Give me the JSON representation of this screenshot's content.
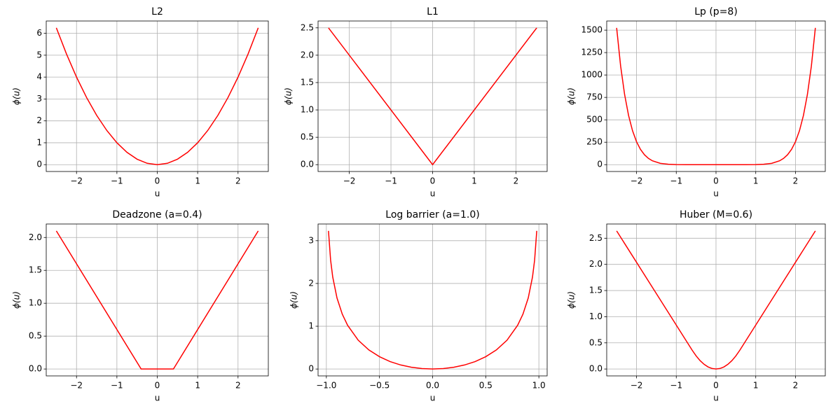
{
  "chart_data": [
    {
      "type": "line",
      "title": "L2",
      "xlabel": "u",
      "ylabel": "ϕ(u)",
      "color": "#ff0000",
      "grid": true,
      "x": [
        -2.5,
        -2.25,
        -2,
        -1.75,
        -1.5,
        -1.25,
        -1,
        -0.75,
        -0.5,
        -0.25,
        0,
        0.25,
        0.5,
        0.75,
        1,
        1.25,
        1.5,
        1.75,
        2,
        2.25,
        2.5
      ],
      "values": [
        6.25,
        5.0625,
        4,
        3.0625,
        2.25,
        1.5625,
        1,
        0.5625,
        0.25,
        0.0625,
        0,
        0.0625,
        0.25,
        0.5625,
        1,
        1.5625,
        2.25,
        3.0625,
        4,
        5.0625,
        6.25
      ],
      "xlim": [
        -2.75,
        2.75
      ],
      "ylim": [
        -0.3125,
        6.5625
      ],
      "xticks": [
        {
          "value": -2,
          "label": "−2"
        },
        {
          "value": -1,
          "label": "−1"
        },
        0,
        1,
        2
      ],
      "yticks": [
        0,
        1,
        2,
        3,
        4,
        5,
        6
      ]
    },
    {
      "type": "line",
      "title": "L1",
      "xlabel": "u",
      "ylabel": "ϕ(u)",
      "color": "#ff0000",
      "grid": true,
      "x": [
        -2.5,
        0,
        2.5
      ],
      "values": [
        2.5,
        0,
        2.5
      ],
      "xlim": [
        -2.75,
        2.75
      ],
      "ylim": [
        -0.125,
        2.625
      ],
      "xticks": [
        {
          "value": -2,
          "label": "−2"
        },
        {
          "value": -1,
          "label": "−1"
        },
        0,
        1,
        2
      ],
      "yticks": [
        {
          "value": 0,
          "label": "0.0"
        },
        0.5,
        {
          "value": 1,
          "label": "1.0"
        },
        1.5,
        {
          "value": 2,
          "label": "2.0"
        },
        2.5
      ]
    },
    {
      "type": "line",
      "title": "Lp (p=8)",
      "xlabel": "u",
      "ylabel": "ϕ(u)",
      "color": "#ff0000",
      "grid": true,
      "x": [
        -2.5,
        -2.4,
        -2.3,
        -2.2,
        -2.1,
        -2,
        -1.9,
        -1.8,
        -1.7,
        -1.6,
        -1.4,
        -1.2,
        -1,
        -0.75,
        -0.5,
        0,
        0.5,
        0.75,
        1,
        1.2,
        1.4,
        1.6,
        1.7,
        1.8,
        1.9,
        2,
        2.1,
        2.2,
        2.3,
        2.4,
        2.5
      ],
      "values": [
        1525.88,
        1100.75,
        783.1,
        548.76,
        378.2,
        256,
        169.8,
        110.2,
        69.76,
        42.95,
        14.76,
        4.3,
        1,
        0.1,
        0.004,
        0,
        0.004,
        0.1,
        1,
        4.3,
        14.76,
        42.95,
        69.76,
        110.2,
        169.8,
        256,
        378.2,
        548.76,
        783.1,
        1100.75,
        1525.88
      ],
      "xlim": [
        -2.75,
        2.75
      ],
      "ylim": [
        -76.3,
        1602.2
      ],
      "xticks": [
        {
          "value": -2,
          "label": "−2"
        },
        {
          "value": -1,
          "label": "−1"
        },
        0,
        1,
        2
      ],
      "yticks": [
        0,
        250,
        500,
        750,
        1000,
        1250,
        1500
      ]
    },
    {
      "type": "line",
      "title": "Deadzone (a=0.4)",
      "xlabel": "u",
      "ylabel": "ϕ(u)",
      "color": "#ff0000",
      "grid": true,
      "x": [
        -2.5,
        -0.4,
        0,
        0.4,
        2.5
      ],
      "values": [
        2.1,
        0,
        0,
        0,
        2.1
      ],
      "xlim": [
        -2.75,
        2.75
      ],
      "ylim": [
        -0.105,
        2.205
      ],
      "xticks": [
        {
          "value": -2,
          "label": "−2"
        },
        {
          "value": -1,
          "label": "−1"
        },
        0,
        1,
        2
      ],
      "yticks": [
        {
          "value": 0,
          "label": "0.0"
        },
        0.5,
        {
          "value": 1,
          "label": "1.0"
        },
        1.5,
        {
          "value": 2,
          "label": "2.0"
        }
      ]
    },
    {
      "type": "line",
      "title": "Log barrier (a=1.0)",
      "xlabel": "u",
      "ylabel": "ϕ(u)",
      "color": "#ff0000",
      "grid": true,
      "x": [
        -0.98,
        -0.96,
        -0.94,
        -0.9,
        -0.85,
        -0.8,
        -0.7,
        -0.6,
        -0.5,
        -0.4,
        -0.3,
        -0.2,
        -0.1,
        0,
        0.1,
        0.2,
        0.3,
        0.4,
        0.5,
        0.6,
        0.7,
        0.8,
        0.85,
        0.9,
        0.94,
        0.96,
        0.98
      ],
      "values": [
        3.229,
        2.546,
        2.151,
        1.661,
        1.282,
        1.022,
        0.673,
        0.446,
        0.288,
        0.174,
        0.094,
        0.041,
        0.01,
        0,
        0.01,
        0.041,
        0.094,
        0.174,
        0.288,
        0.446,
        0.673,
        1.022,
        1.282,
        1.661,
        2.151,
        2.546,
        3.229
      ],
      "xlim": [
        -1.078,
        1.078
      ],
      "ylim": [
        -0.161,
        3.39
      ],
      "xticks": [
        {
          "value": -1,
          "label": "−1.0"
        },
        {
          "value": -0.5,
          "label": "−0.5"
        },
        {
          "value": 0,
          "label": "0.0"
        },
        0.5,
        {
          "value": 1,
          "label": "1.0"
        }
      ],
      "yticks": [
        0,
        1,
        2,
        3
      ]
    },
    {
      "type": "line",
      "title": "Huber (M=0.6)",
      "xlabel": "u",
      "ylabel": "ϕ(u)",
      "color": "#ff0000",
      "grid": true,
      "x": [
        -2.5,
        -2,
        -1.5,
        -1,
        -0.6,
        -0.5,
        -0.4,
        -0.3,
        -0.2,
        -0.1,
        0,
        0.1,
        0.2,
        0.3,
        0.4,
        0.5,
        0.6,
        1,
        1.5,
        2,
        2.5
      ],
      "values": [
        2.64,
        2.04,
        1.44,
        0.84,
        0.36,
        0.25,
        0.16,
        0.09,
        0.04,
        0.01,
        0,
        0.01,
        0.04,
        0.09,
        0.16,
        0.25,
        0.36,
        0.84,
        1.44,
        2.04,
        2.64
      ],
      "xlim": [
        -2.75,
        2.75
      ],
      "ylim": [
        -0.132,
        2.772
      ],
      "xticks": [
        {
          "value": -2,
          "label": "−2"
        },
        {
          "value": -1,
          "label": "−1"
        },
        0,
        1,
        2
      ],
      "yticks": [
        {
          "value": 0,
          "label": "0.0"
        },
        0.5,
        {
          "value": 1,
          "label": "1.0"
        },
        1.5,
        {
          "value": 2,
          "label": "2.0"
        },
        2.5
      ]
    }
  ]
}
